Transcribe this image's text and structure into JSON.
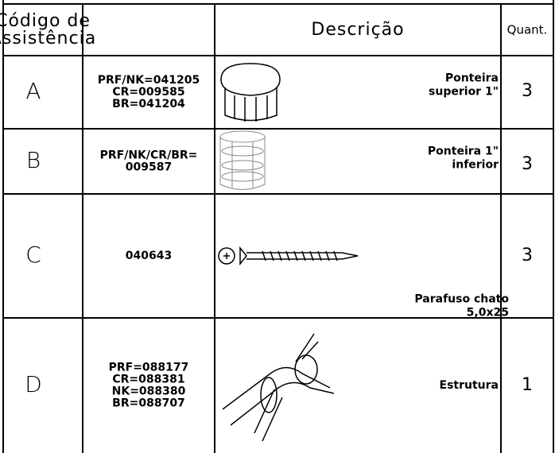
{
  "table": {
    "header": [
      "Código de Assistência",
      "Descrição",
      "Quant."
    ],
    "rows": [
      {
        "code": "A",
        "refs": [
          "PRF/NK=041205",
          "CR=009585",
          "BR=041204"
        ],
        "description": [
          "Ponteira",
          "superior 1\""
        ],
        "quantity": 3
      },
      {
        "code": "B",
        "refs": [
          "PRF/NK/CR/BR=",
          "009587"
        ],
        "description": [
          "Ponteira 1\"",
          "inferior"
        ],
        "quantity": 3
      },
      {
        "code": "C",
        "refs": [
          "040643"
        ],
        "description": [
          "Parafuso chato",
          "5,0x25"
        ],
        "quantity": 3
      },
      {
        "code": "D",
        "refs": [
          "PRF=088177",
          "CR=088381",
          "NK=088380",
          "BR=088707"
        ],
        "description": [
          "Estrutura"
        ],
        "quantity": 1
      }
    ]
  }
}
